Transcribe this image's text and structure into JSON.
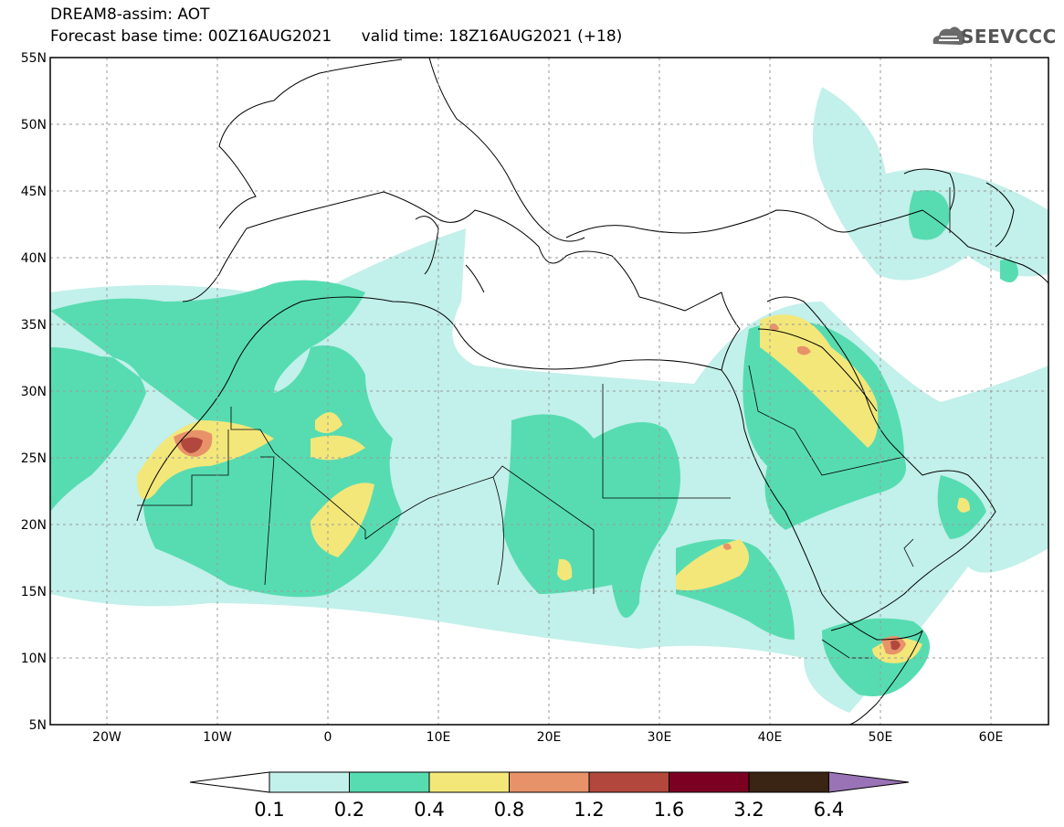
{
  "header": {
    "line1": "DREAM8-assim: AOT",
    "line2": "Forecast base time: 00Z16AUG2021      valid time: 18Z16AUG2021 (+18)"
  },
  "logo": {
    "text": "SEEVCCC",
    "icon": "cloud-icon"
  },
  "map": {
    "lat_labels": [
      "55N",
      "50N",
      "45N",
      "40N",
      "35N",
      "30N",
      "25N",
      "20N",
      "15N",
      "10N",
      "5N"
    ],
    "lon_labels": [
      "20W",
      "10W",
      "0",
      "10E",
      "20E",
      "30E",
      "40E",
      "50E",
      "60E"
    ],
    "background": "#ffffff"
  },
  "colorbar": {
    "labels": [
      "0.1",
      "0.2",
      "0.4",
      "0.8",
      "1.2",
      "1.6",
      "3.2",
      "6.4"
    ],
    "colors": [
      "#c2f0ea",
      "#57dcb1",
      "#f3e77a",
      "#e8926a",
      "#b2483d",
      "#7b0022",
      "#3a2413",
      "#9a73b6",
      "#ffffff"
    ]
  }
}
